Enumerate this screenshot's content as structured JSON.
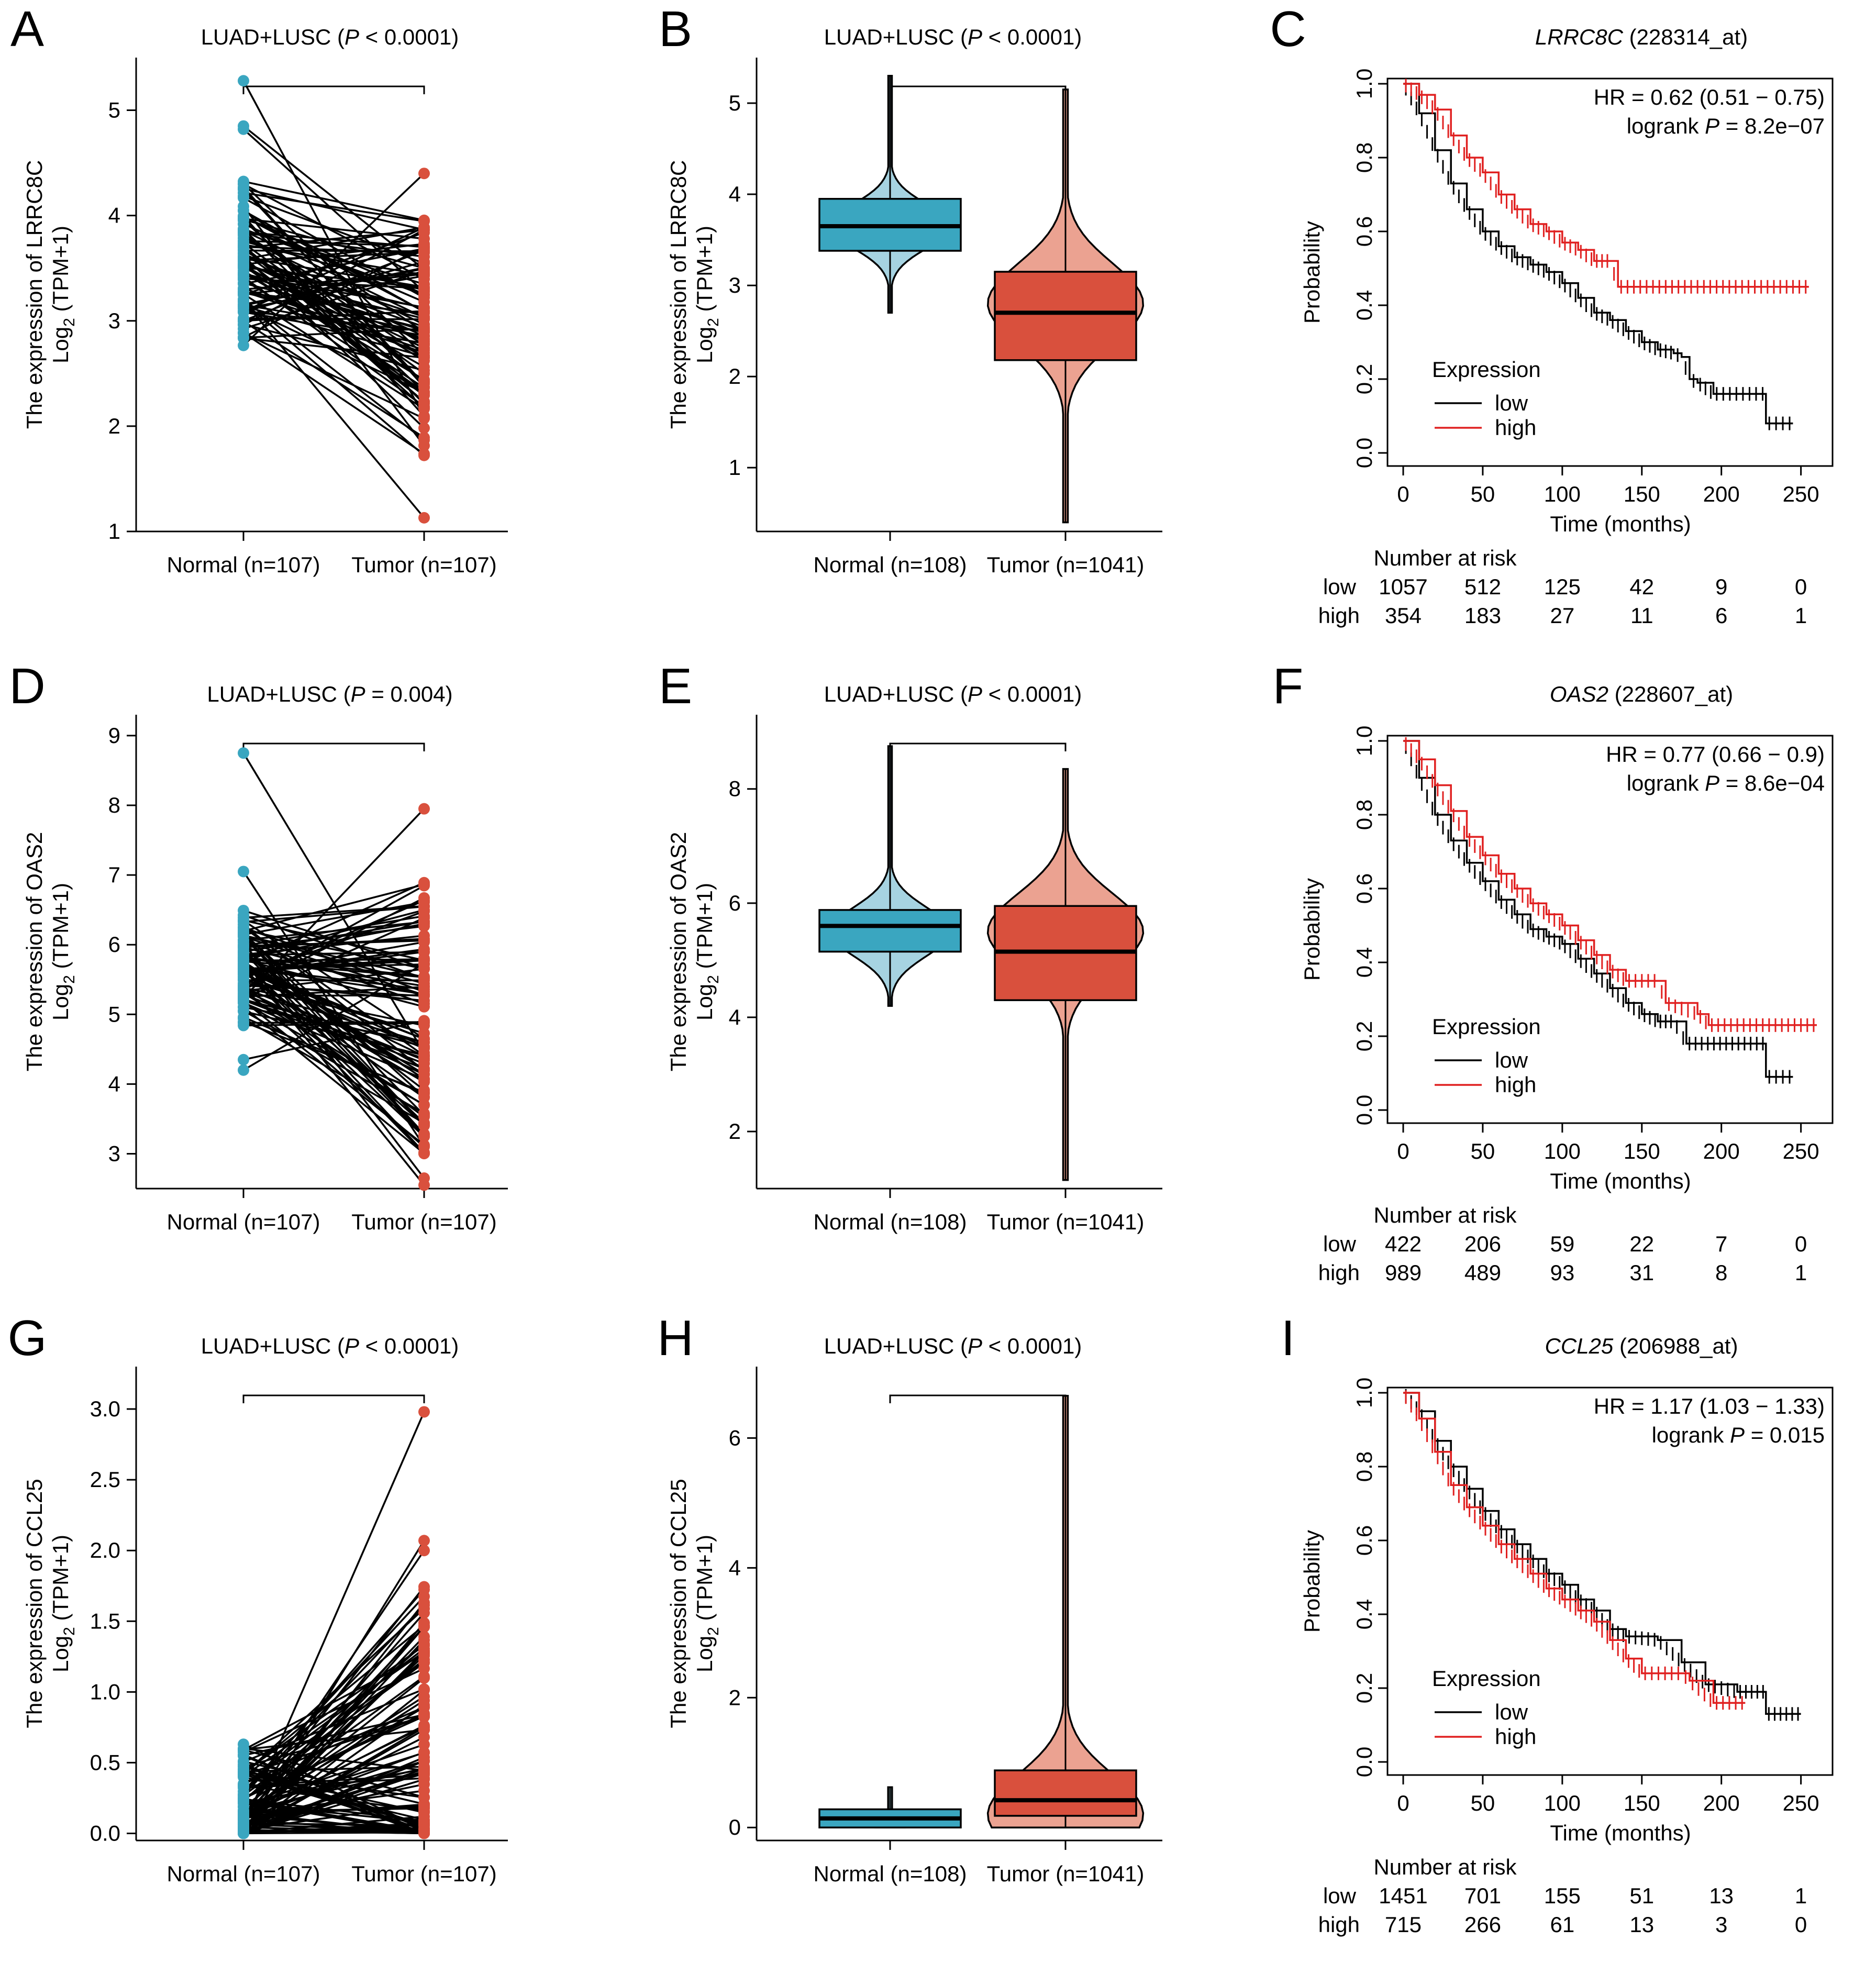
{
  "colors": {
    "normal": "#3aa6c0",
    "normal_light": "#a6d3e1",
    "tumor": "#d9503d",
    "tumor_light": "#eba291",
    "km_low": "#000000",
    "km_high": "#e02020"
  },
  "panels": [
    {
      "letter": "A",
      "type": "paired",
      "title_prefix": "LUAD+LUSC (",
      "title_p": "P",
      "title_suffix": " < 0.0001)",
      "ylabel1": "The expression of LRRC8C",
      "ylabel2": "Log",
      "ylabel2_sub": "2",
      "ylabel2_rest": " (TPM+1)",
      "yticks": [
        1,
        2,
        3,
        4,
        5
      ],
      "ylim": [
        1,
        5.5
      ],
      "xlabels": [
        "Normal (n=107)",
        "Tumor (n=107)"
      ],
      "normal_range": [
        2.72,
        4.45
      ],
      "tumor_range": [
        1.68,
        4.1
      ],
      "normal_extra": [
        5.28,
        4.85,
        4.82
      ],
      "tumor_extra": [
        4.4,
        1.13
      ],
      "corr": 0.2
    },
    {
      "letter": "B",
      "type": "violin",
      "title_prefix": "LUAD+LUSC (",
      "title_p": "P",
      "title_suffix": " < 0.0001)",
      "ylabel1": "The expression of LRRC8C",
      "ylabel2": "Log",
      "ylabel2_sub": "2",
      "ylabel2_rest": " (TPM+1)",
      "yticks": [
        1,
        2,
        3,
        4,
        5
      ],
      "ylim": [
        0.3,
        5.5
      ],
      "xlabels": [
        "Normal (n=108)",
        "Tumor (n=1041)"
      ],
      "normal": {
        "min": 2.7,
        "q1": 3.38,
        "median": 3.65,
        "q3": 3.95,
        "max": 5.3,
        "mode": 3.65,
        "width": 0.35
      },
      "tumor": {
        "min": 0.4,
        "q1": 2.18,
        "median": 2.7,
        "q3": 3.15,
        "max": 5.15,
        "mode": 2.8,
        "width": 0.45
      }
    },
    {
      "letter": "C",
      "type": "km",
      "gene": "LRRC8C",
      "probe": " (228314_at)",
      "hr": "HR = 0.62 (0.51 − 0.75)",
      "logrank_prefix": "logrank ",
      "logrank_p": "P",
      "logrank_val": " = 8.2e−07",
      "xticks": [
        0,
        50,
        100,
        150,
        200,
        250
      ],
      "yticks": [
        "0.0",
        "0.2",
        "0.4",
        "0.6",
        "0.8",
        "1.0"
      ],
      "xlabel": "Time (months)",
      "ylabel": "Probability",
      "legend_title": "Expression",
      "legend_low": "low",
      "legend_high": "high",
      "risk_title": "Number at risk",
      "risk_low": [
        "1057",
        "512",
        "125",
        "42",
        "9",
        "0"
      ],
      "risk_high": [
        "354",
        "183",
        "27",
        "11",
        "6",
        "1"
      ],
      "low_curve": [
        [
          0,
          1
        ],
        [
          10,
          0.92
        ],
        [
          20,
          0.82
        ],
        [
          30,
          0.73
        ],
        [
          40,
          0.66
        ],
        [
          50,
          0.6
        ],
        [
          60,
          0.56
        ],
        [
          70,
          0.53
        ],
        [
          80,
          0.51
        ],
        [
          90,
          0.49
        ],
        [
          100,
          0.46
        ],
        [
          110,
          0.42
        ],
        [
          120,
          0.38
        ],
        [
          130,
          0.36
        ],
        [
          140,
          0.33
        ],
        [
          150,
          0.3
        ],
        [
          160,
          0.28
        ],
        [
          170,
          0.27
        ],
        [
          175,
          0.26
        ],
        [
          180,
          0.2
        ],
        [
          185,
          0.19
        ],
        [
          195,
          0.16
        ],
        [
          228,
          0.16
        ],
        [
          228,
          0.08
        ],
        [
          245,
          0.08
        ]
      ],
      "high_curve": [
        [
          0,
          1
        ],
        [
          10,
          0.97
        ],
        [
          20,
          0.93
        ],
        [
          30,
          0.86
        ],
        [
          40,
          0.8
        ],
        [
          50,
          0.76
        ],
        [
          60,
          0.7
        ],
        [
          70,
          0.66
        ],
        [
          80,
          0.62
        ],
        [
          90,
          0.6
        ],
        [
          100,
          0.57
        ],
        [
          110,
          0.55
        ],
        [
          120,
          0.52
        ],
        [
          130,
          0.52
        ],
        [
          135,
          0.45
        ],
        [
          255,
          0.45
        ]
      ]
    },
    {
      "letter": "D",
      "type": "paired",
      "title_prefix": "LUAD+LUSC (",
      "title_p": "P",
      "title_suffix": " = 0.004)",
      "ylabel1": "The expression of OAS2",
      "ylabel2": "Log",
      "ylabel2_sub": "2",
      "ylabel2_rest": " (TPM+1)",
      "yticks": [
        3,
        4,
        5,
        6,
        7,
        8,
        9
      ],
      "ylim": [
        2.5,
        9.3
      ],
      "xlabels": [
        "Normal (n=107)",
        "Tumor (n=107)"
      ],
      "normal_range": [
        4.7,
        6.6
      ],
      "tumor_range": [
        2.9,
        7.05
      ],
      "normal_extra": [
        8.75,
        7.05,
        4.35,
        4.2
      ],
      "tumor_extra": [
        7.95,
        2.55,
        2.65
      ],
      "corr": 0.1
    },
    {
      "letter": "E",
      "type": "violin",
      "title_prefix": "LUAD+LUSC (",
      "title_p": "P",
      "title_suffix": " < 0.0001)",
      "ylabel1": "The expression of OAS2",
      "ylabel2": "Log",
      "ylabel2_sub": "2",
      "ylabel2_rest": " (TPM+1)",
      "yticks": [
        2,
        4,
        6,
        8
      ],
      "ylim": [
        1,
        9.3
      ],
      "xlabels": [
        "Normal (n=108)",
        "Tumor (n=1041)"
      ],
      "normal": {
        "min": 4.2,
        "q1": 5.15,
        "median": 5.6,
        "q3": 5.88,
        "max": 8.75,
        "mode": 5.5,
        "width": 0.35
      },
      "tumor": {
        "min": 1.15,
        "q1": 4.3,
        "median": 5.15,
        "q3": 5.95,
        "max": 8.35,
        "mode": 5.5,
        "width": 0.45
      }
    },
    {
      "letter": "F",
      "type": "km",
      "gene": "OAS2",
      "probe": " (228607_at)",
      "hr": "HR = 0.77 (0.66 − 0.9)",
      "logrank_prefix": "logrank ",
      "logrank_p": "P",
      "logrank_val": " = 8.6e−04",
      "xticks": [
        0,
        50,
        100,
        150,
        200,
        250
      ],
      "yticks": [
        "0.0",
        "0.2",
        "0.4",
        "0.6",
        "0.8",
        "1.0"
      ],
      "xlabel": "Time (months)",
      "ylabel": "Probability",
      "legend_title": "Expression",
      "legend_low": "low",
      "legend_high": "high",
      "risk_title": "Number at risk",
      "risk_low": [
        "422",
        "206",
        "59",
        "22",
        "7",
        "0"
      ],
      "risk_high": [
        "989",
        "489",
        "93",
        "31",
        "8",
        "1"
      ],
      "low_curve": [
        [
          0,
          1
        ],
        [
          10,
          0.9
        ],
        [
          20,
          0.8
        ],
        [
          30,
          0.73
        ],
        [
          40,
          0.67
        ],
        [
          50,
          0.62
        ],
        [
          60,
          0.57
        ],
        [
          70,
          0.53
        ],
        [
          80,
          0.49
        ],
        [
          90,
          0.47
        ],
        [
          100,
          0.45
        ],
        [
          110,
          0.41
        ],
        [
          120,
          0.37
        ],
        [
          130,
          0.33
        ],
        [
          140,
          0.29
        ],
        [
          150,
          0.26
        ],
        [
          160,
          0.24
        ],
        [
          170,
          0.24
        ],
        [
          178,
          0.18
        ],
        [
          228,
          0.18
        ],
        [
          228,
          0.09
        ],
        [
          245,
          0.09
        ]
      ],
      "high_curve": [
        [
          0,
          1
        ],
        [
          10,
          0.95
        ],
        [
          20,
          0.88
        ],
        [
          30,
          0.81
        ],
        [
          40,
          0.74
        ],
        [
          50,
          0.69
        ],
        [
          60,
          0.64
        ],
        [
          70,
          0.6
        ],
        [
          80,
          0.56
        ],
        [
          90,
          0.53
        ],
        [
          100,
          0.5
        ],
        [
          110,
          0.46
        ],
        [
          120,
          0.42
        ],
        [
          130,
          0.38
        ],
        [
          140,
          0.35
        ],
        [
          160,
          0.35
        ],
        [
          165,
          0.29
        ],
        [
          185,
          0.26
        ],
        [
          192,
          0.23
        ],
        [
          260,
          0.23
        ]
      ]
    },
    {
      "letter": "G",
      "type": "paired",
      "title_prefix": "LUAD+LUSC (",
      "title_p": "P",
      "title_suffix": " < 0.0001)",
      "ylabel1": "The expression of CCL25",
      "ylabel2": "Log",
      "ylabel2_sub": "2",
      "ylabel2_rest": " (TPM+1)",
      "yticks": [
        "0.0",
        "0.5",
        "1.0",
        "1.5",
        "2.0",
        "2.5",
        "3.0"
      ],
      "ylim": [
        -0.05,
        3.3
      ],
      "xlabels": [
        "Normal (n=107)",
        "Tumor (n=107)"
      ],
      "normal_range": [
        0,
        0.62
      ],
      "tumor_range": [
        0,
        1.8
      ],
      "normal_extra": [
        0.63,
        0.6
      ],
      "tumor_extra": [
        2.98,
        2.07,
        2.0
      ],
      "corr": 0.5,
      "skew": true
    },
    {
      "letter": "H",
      "type": "violin",
      "title_prefix": "LUAD+LUSC (",
      "title_p": "P",
      "title_suffix": " < 0.0001)",
      "ylabel1": "The expression of CCL25",
      "ylabel2": "Log",
      "ylabel2_sub": "2",
      "ylabel2_rest": " (TPM+1)",
      "yticks": [
        0,
        2,
        4,
        6
      ],
      "ylim": [
        -0.2,
        7.1
      ],
      "xlabels": [
        "Normal (n=108)",
        "Tumor (n=1041)"
      ],
      "normal": {
        "min": 0,
        "q1": 0.0,
        "median": 0.14,
        "q3": 0.28,
        "max": 0.62,
        "mode": 0.1,
        "width": 0.38
      },
      "tumor": {
        "min": 0,
        "q1": 0.18,
        "median": 0.42,
        "q3": 0.88,
        "max": 6.65,
        "mode": 0.2,
        "width": 0.45
      }
    },
    {
      "letter": "I",
      "type": "km",
      "gene": "CCL25",
      "probe": " (206988_at)",
      "hr": "HR = 1.17 (1.03 − 1.33)",
      "logrank_prefix": "logrank ",
      "logrank_p": "P",
      "logrank_val": " = 0.015",
      "xticks": [
        0,
        50,
        100,
        150,
        200,
        250
      ],
      "yticks": [
        "0.0",
        "0.2",
        "0.4",
        "0.6",
        "0.8",
        "1.0"
      ],
      "xlabel": "Time (months)",
      "ylabel": "Probability",
      "legend_title": "Expression",
      "legend_low": "low",
      "legend_high": "high",
      "risk_title": "Number at risk",
      "risk_low": [
        "1451",
        "701",
        "155",
        "51",
        "13",
        "1"
      ],
      "risk_high": [
        "715",
        "266",
        "61",
        "13",
        "3",
        "0"
      ],
      "low_curve": [
        [
          0,
          1
        ],
        [
          10,
          0.95
        ],
        [
          20,
          0.87
        ],
        [
          30,
          0.8
        ],
        [
          40,
          0.74
        ],
        [
          50,
          0.68
        ],
        [
          60,
          0.63
        ],
        [
          70,
          0.59
        ],
        [
          80,
          0.55
        ],
        [
          90,
          0.51
        ],
        [
          100,
          0.48
        ],
        [
          110,
          0.44
        ],
        [
          120,
          0.41
        ],
        [
          130,
          0.36
        ],
        [
          140,
          0.34
        ],
        [
          160,
          0.33
        ],
        [
          175,
          0.27
        ],
        [
          190,
          0.21
        ],
        [
          210,
          0.19
        ],
        [
          228,
          0.19
        ],
        [
          228,
          0.13
        ],
        [
          250,
          0.13
        ]
      ],
      "high_curve": [
        [
          0,
          1
        ],
        [
          10,
          0.93
        ],
        [
          20,
          0.84
        ],
        [
          30,
          0.75
        ],
        [
          40,
          0.69
        ],
        [
          50,
          0.64
        ],
        [
          60,
          0.59
        ],
        [
          70,
          0.55
        ],
        [
          80,
          0.51
        ],
        [
          90,
          0.47
        ],
        [
          100,
          0.44
        ],
        [
          110,
          0.41
        ],
        [
          120,
          0.38
        ],
        [
          130,
          0.33
        ],
        [
          140,
          0.28
        ],
        [
          150,
          0.24
        ],
        [
          175,
          0.24
        ],
        [
          180,
          0.22
        ],
        [
          195,
          0.16
        ],
        [
          215,
          0.16
        ]
      ]
    }
  ]
}
